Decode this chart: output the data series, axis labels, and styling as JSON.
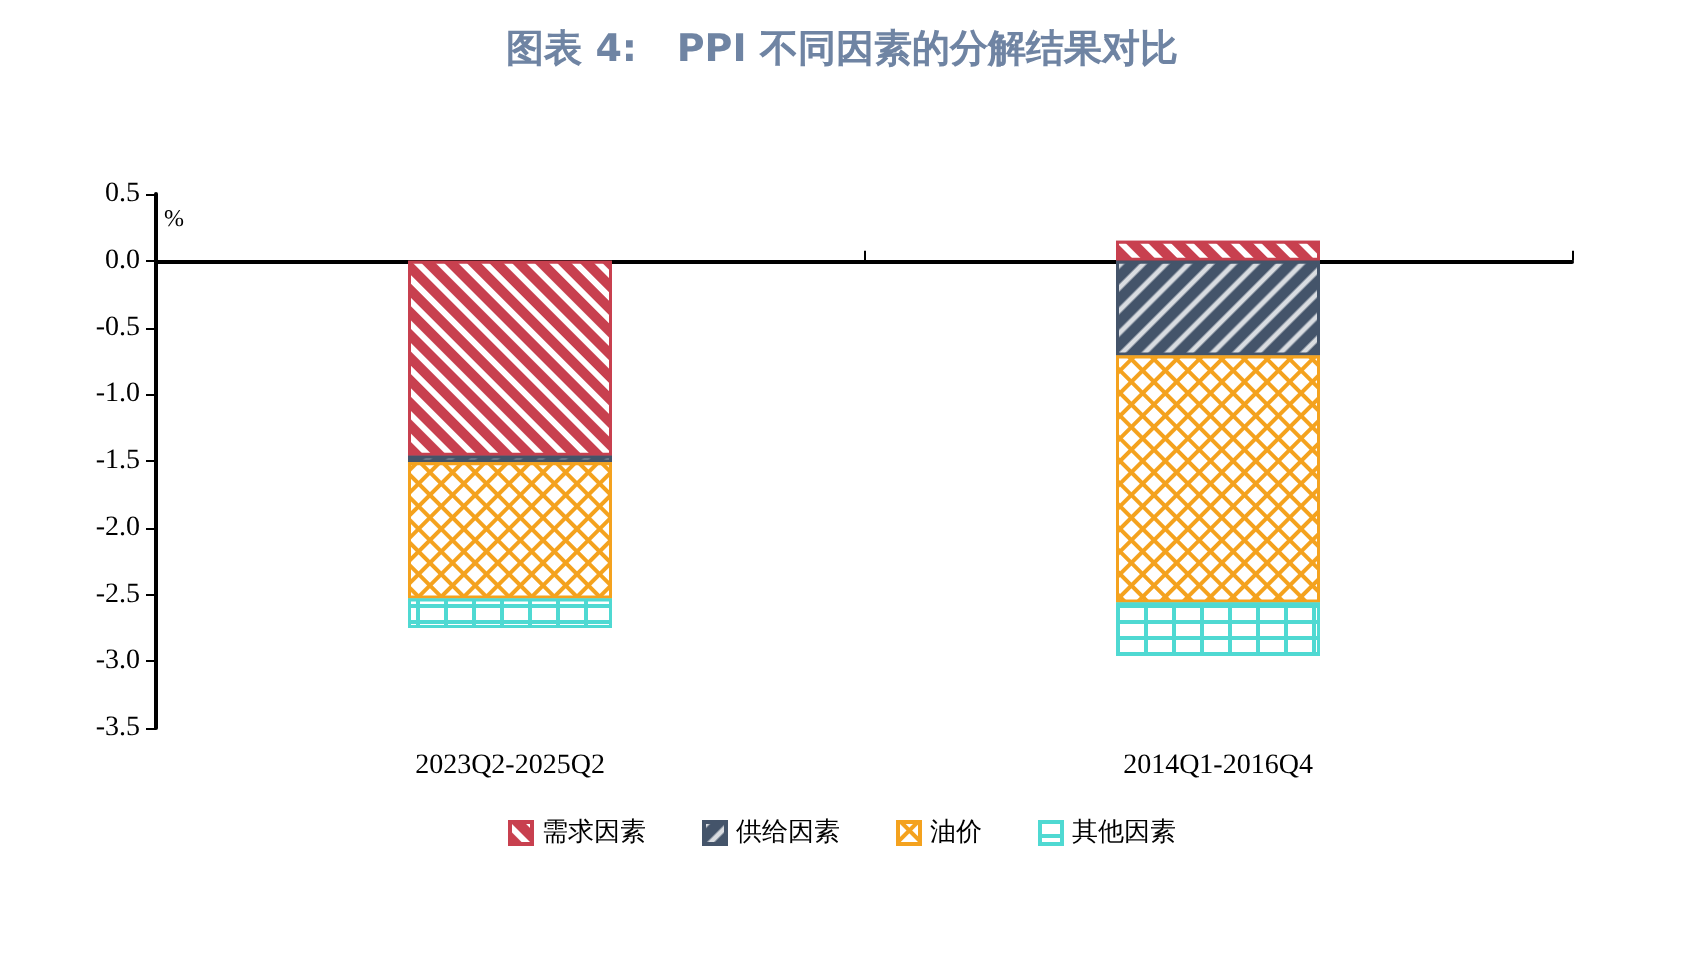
{
  "chart_data": {
    "type": "bar",
    "title": "图表 4:   PPI 不同因素的分解结果对比",
    "ylabel": "%",
    "categories": [
      "2023Q2-2025Q2",
      "2014Q1-2016Q4"
    ],
    "stacked": true,
    "series": [
      {
        "name": "需求因素",
        "color": "#c8404f",
        "values": [
          -1.46,
          0.15
        ]
      },
      {
        "name": "供给因素",
        "color": "#44546a",
        "values": [
          -0.05,
          -0.71
        ]
      },
      {
        "name": "油价",
        "color": "#f4a21e",
        "values": [
          -1.02,
          -1.85
        ]
      },
      {
        "name": "其他因素",
        "color": "#4fd9d2",
        "values": [
          -0.22,
          -0.4
        ]
      }
    ],
    "ylim": [
      -3.5,
      0.5
    ],
    "yticks": [
      {
        "value": -3.5,
        "label": "-3.5"
      },
      {
        "value": -3,
        "label": "-3.0"
      },
      {
        "value": -2.5,
        "label": "-2.5"
      },
      {
        "value": -2,
        "label": "-2.0"
      },
      {
        "value": -1.5,
        "label": "-1.5"
      },
      {
        "value": -1,
        "label": "-1.0"
      },
      {
        "value": -0.5,
        "label": "-0.5"
      },
      {
        "value": 0,
        "label": "0.0"
      },
      {
        "value": 0.5,
        "label": "0.5"
      }
    ],
    "legend": "bottom"
  }
}
